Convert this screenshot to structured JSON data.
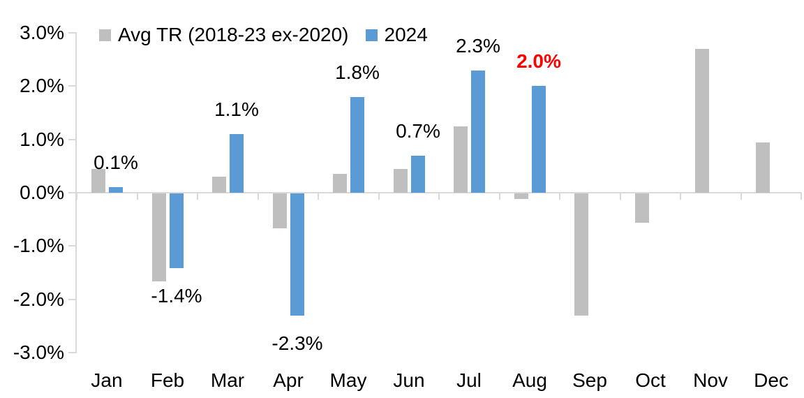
{
  "chart_data": {
    "type": "bar",
    "title": "",
    "xlabel": "",
    "ylabel": "",
    "categories": [
      "Jan",
      "Feb",
      "Mar",
      "Apr",
      "May",
      "Jun",
      "Jul",
      "Aug",
      "Sep",
      "Oct",
      "Nov",
      "Dec"
    ],
    "series": [
      {
        "name": "Avg TR (2018-23 ex-2020)",
        "color": "#BFBFBF",
        "values": [
          0.45,
          -1.65,
          0.3,
          -0.65,
          0.35,
          0.45,
          1.25,
          -0.1,
          -2.3,
          -0.55,
          2.7,
          0.95
        ]
      },
      {
        "name": "2024",
        "color": "#5B9BD5",
        "values": [
          0.1,
          -1.4,
          1.1,
          -2.3,
          1.8,
          0.7,
          2.3,
          2.0,
          null,
          null,
          null,
          null
        ]
      }
    ],
    "data_labels": [
      {
        "text": "0.1%",
        "color": "#000000",
        "bold": false
      },
      {
        "text": "-1.4%",
        "color": "#000000",
        "bold": false
      },
      {
        "text": "1.1%",
        "color": "#000000",
        "bold": false
      },
      {
        "text": "-2.3%",
        "color": "#000000",
        "bold": false
      },
      {
        "text": "1.8%",
        "color": "#000000",
        "bold": false
      },
      {
        "text": "0.7%",
        "color": "#000000",
        "bold": false
      },
      {
        "text": "2.3%",
        "color": "#000000",
        "bold": false
      },
      {
        "text": "2.0%",
        "color": "#FF0000",
        "bold": true
      },
      null,
      null,
      null,
      null
    ],
    "y_ticks": [
      {
        "label": "3.0%",
        "value": 3
      },
      {
        "label": "2.0%",
        "value": 2
      },
      {
        "label": "1.0%",
        "value": 1
      },
      {
        "label": "0.0%",
        "value": 0
      },
      {
        "label": "-1.0%",
        "value": -1
      },
      {
        "label": "-2.0%",
        "value": -2
      },
      {
        "label": "-3.0%",
        "value": -3
      }
    ],
    "ylim": [
      -3.0,
      3.0
    ],
    "grid": false,
    "legend_position": "top"
  },
  "colors": {
    "axis": "#D9D9D9",
    "text": "#000000",
    "highlight": "#FF0000"
  }
}
